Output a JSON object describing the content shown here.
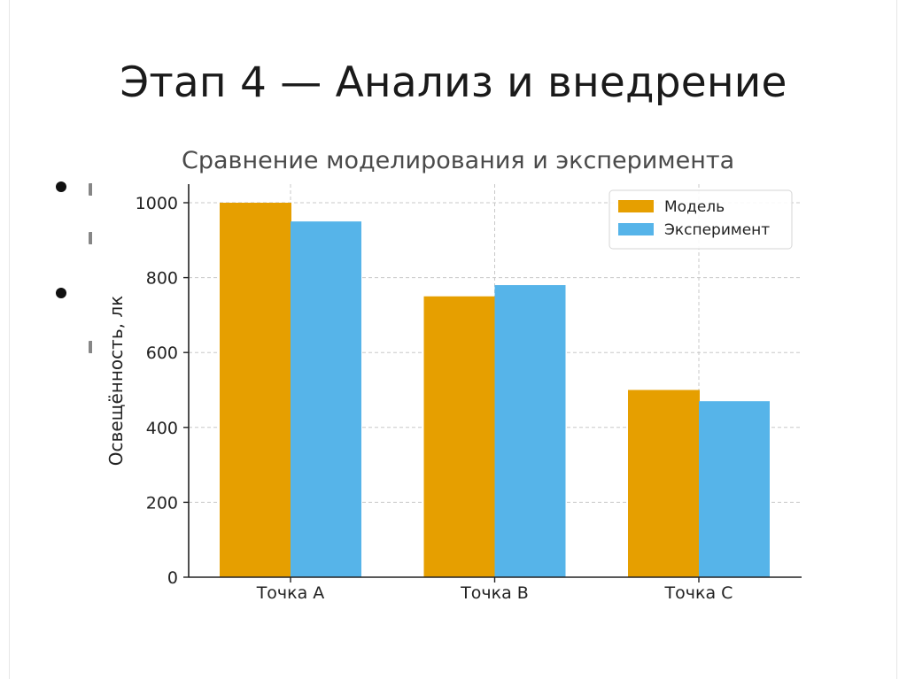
{
  "slide": {
    "title": "Этап 4 — Анализ и внедрение"
  },
  "chart_data": {
    "type": "bar",
    "title": "Сравнение моделирования и эксперимента",
    "xlabel": "",
    "ylabel": "Освещённость, лк",
    "categories": [
      "Точка A",
      "Точка B",
      "Точка C"
    ],
    "series": [
      {
        "name": "Модель",
        "values": [
          1000,
          750,
          500
        ],
        "color": "#E69F00"
      },
      {
        "name": "Эксперимент",
        "values": [
          950,
          780,
          470
        ],
        "color": "#56B4E9"
      }
    ],
    "ylim": [
      0,
      1000
    ],
    "yticks": [
      0,
      200,
      400,
      600,
      800,
      1000
    ],
    "grid": true,
    "legend_position": "top-right"
  }
}
